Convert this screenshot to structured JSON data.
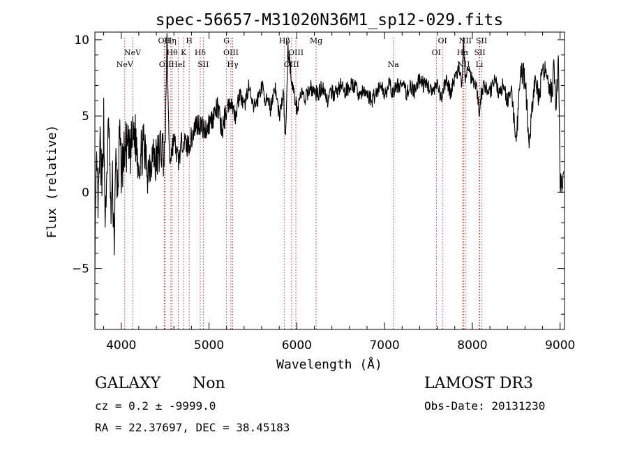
{
  "chart_data": {
    "type": "line",
    "title": "spec-56657-M31020N36M1_sp12-029.fits",
    "xlabel": "Wavelength (Å)",
    "ylabel": "Flux (relative)",
    "xlim": [
      3700,
      9050
    ],
    "ylim": [
      -9,
      10.5
    ],
    "xticks": [
      4000,
      5000,
      6000,
      7000,
      8000,
      9000
    ],
    "xtick_labels": [
      "4000",
      "5000",
      "6000",
      "7000",
      "8000",
      "9000"
    ],
    "yticks": [
      -5,
      0,
      5,
      10
    ],
    "ytick_labels": [
      "−5",
      "0",
      "5",
      "10"
    ],
    "grid": false,
    "series": [
      {
        "name": "flux",
        "x": [
          3700,
          3720,
          3740,
          3760,
          3780,
          3800,
          3820,
          3840,
          3860,
          3880,
          3900,
          3920,
          3940,
          3960,
          3980,
          4000,
          4050,
          4100,
          4150,
          4200,
          4250,
          4300,
          4350,
          4400,
          4450,
          4500,
          4520,
          4550,
          4600,
          4650,
          4700,
          4750,
          4800,
          4850,
          4900,
          4950,
          5000,
          5050,
          5100,
          5150,
          5200,
          5250,
          5300,
          5350,
          5400,
          5450,
          5500,
          5550,
          5600,
          5650,
          5700,
          5750,
          5800,
          5850,
          5870,
          5900,
          5950,
          6000,
          6050,
          6100,
          6150,
          6200,
          6250,
          6300,
          6350,
          6400,
          6450,
          6500,
          6550,
          6600,
          6650,
          6700,
          6750,
          6800,
          6850,
          6900,
          6950,
          7000,
          7050,
          7100,
          7150,
          7200,
          7250,
          7300,
          7350,
          7400,
          7450,
          7500,
          7550,
          7600,
          7650,
          7700,
          7750,
          7800,
          7850,
          7880,
          7900,
          7920,
          7950,
          8000,
          8050,
          8080,
          8100,
          8150,
          8200,
          8250,
          8300,
          8350,
          8400,
          8450,
          8500,
          8550,
          8600,
          8650,
          8700,
          8750,
          8800,
          8850,
          8900,
          8930,
          8950,
          8980,
          9000
        ],
        "y": [
          -3.5,
          1.5,
          -1.0,
          3.0,
          0.0,
          5.0,
          -2.5,
          2.0,
          4.5,
          -1.5,
          0.5,
          -3.0,
          2.0,
          0.0,
          3.5,
          1.5,
          3.0,
          2.5,
          4.0,
          2.0,
          3.0,
          1.5,
          2.5,
          2.0,
          3.0,
          2.5,
          10.0,
          2.0,
          3.5,
          2.0,
          3.5,
          3.0,
          3.5,
          4.5,
          4.5,
          4.0,
          4.5,
          5.0,
          5.5,
          4.0,
          5.5,
          6.0,
          5.0,
          6.5,
          5.5,
          7.0,
          5.5,
          6.0,
          7.0,
          6.0,
          5.5,
          7.0,
          5.0,
          6.5,
          3.0,
          9.5,
          7.0,
          5.5,
          6.5,
          6.0,
          7.0,
          6.5,
          6.5,
          7.0,
          6.0,
          6.5,
          6.5,
          7.0,
          6.5,
          7.0,
          7.0,
          6.5,
          6.5,
          6.5,
          6.0,
          6.5,
          7.0,
          6.5,
          7.0,
          6.5,
          7.0,
          7.0,
          6.5,
          7.0,
          6.5,
          7.5,
          7.0,
          7.0,
          6.5,
          7.0,
          6.0,
          7.5,
          6.5,
          7.5,
          8.0,
          7.0,
          10.0,
          7.5,
          8.0,
          7.5,
          7.0,
          5.0,
          6.5,
          7.0,
          6.5,
          7.5,
          6.5,
          7.0,
          6.0,
          6.5,
          3.0,
          8.0,
          7.5,
          3.0,
          7.0,
          6.5,
          7.5,
          8.0,
          6.5,
          8.0,
          5.0,
          9.0,
          0.5
        ]
      }
    ],
    "line_markers": [
      {
        "label": "NeV",
        "x": 4040,
        "row": 3
      },
      {
        "label": "NeV",
        "x": 4130,
        "row": 2
      },
      {
        "label": "OII",
        "x": 4490,
        "row": 1
      },
      {
        "label": "OII",
        "x": 4500,
        "row": 3
      },
      {
        "label": "Hη",
        "x": 4565,
        "row": 1
      },
      {
        "label": "Hθ",
        "x": 4580,
        "row": 2
      },
      {
        "label": "HeI",
        "x": 4650,
        "row": 3
      },
      {
        "label": "K",
        "x": 4710,
        "row": 2
      },
      {
        "label": "H",
        "x": 4775,
        "row": 1
      },
      {
        "label": "Hδ",
        "x": 4900,
        "row": 2
      },
      {
        "label": "SII",
        "x": 4935,
        "row": 3
      },
      {
        "label": "G",
        "x": 5200,
        "row": 1
      },
      {
        "label": "OIII",
        "x": 5250,
        "row": 2
      },
      {
        "label": "Hγ",
        "x": 5270,
        "row": 3
      },
      {
        "label": "Hβ",
        "x": 5860,
        "row": 1
      },
      {
        "label": "OIII",
        "x": 5940,
        "row": 3
      },
      {
        "label": "OIII",
        "x": 5990,
        "row": 2
      },
      {
        "label": "Mg",
        "x": 6220,
        "row": 1
      },
      {
        "label": "Na",
        "x": 7100,
        "row": 3
      },
      {
        "label": "OI",
        "x": 7590,
        "row": 2
      },
      {
        "label": "OI",
        "x": 7660,
        "row": 1
      },
      {
        "label": "Hα",
        "x": 7890,
        "row": 2
      },
      {
        "label": "NII",
        "x": 7900,
        "row": 3
      },
      {
        "label": "NII",
        "x": 7920,
        "row": 1
      },
      {
        "label": "Li",
        "x": 8080,
        "row": 3
      },
      {
        "label": "SII",
        "x": 8085,
        "row": 2
      },
      {
        "label": "SII",
        "x": 8105,
        "row": 1
      }
    ]
  },
  "info": {
    "class": "GALAXY",
    "subclass": "Non",
    "survey": "LAMOST DR3",
    "cz": "cz = 0.2 ± -9999.0",
    "obs_date": "Obs-Date: 20131230",
    "coords": "RA =  22.37697, DEC =  38.45183"
  }
}
